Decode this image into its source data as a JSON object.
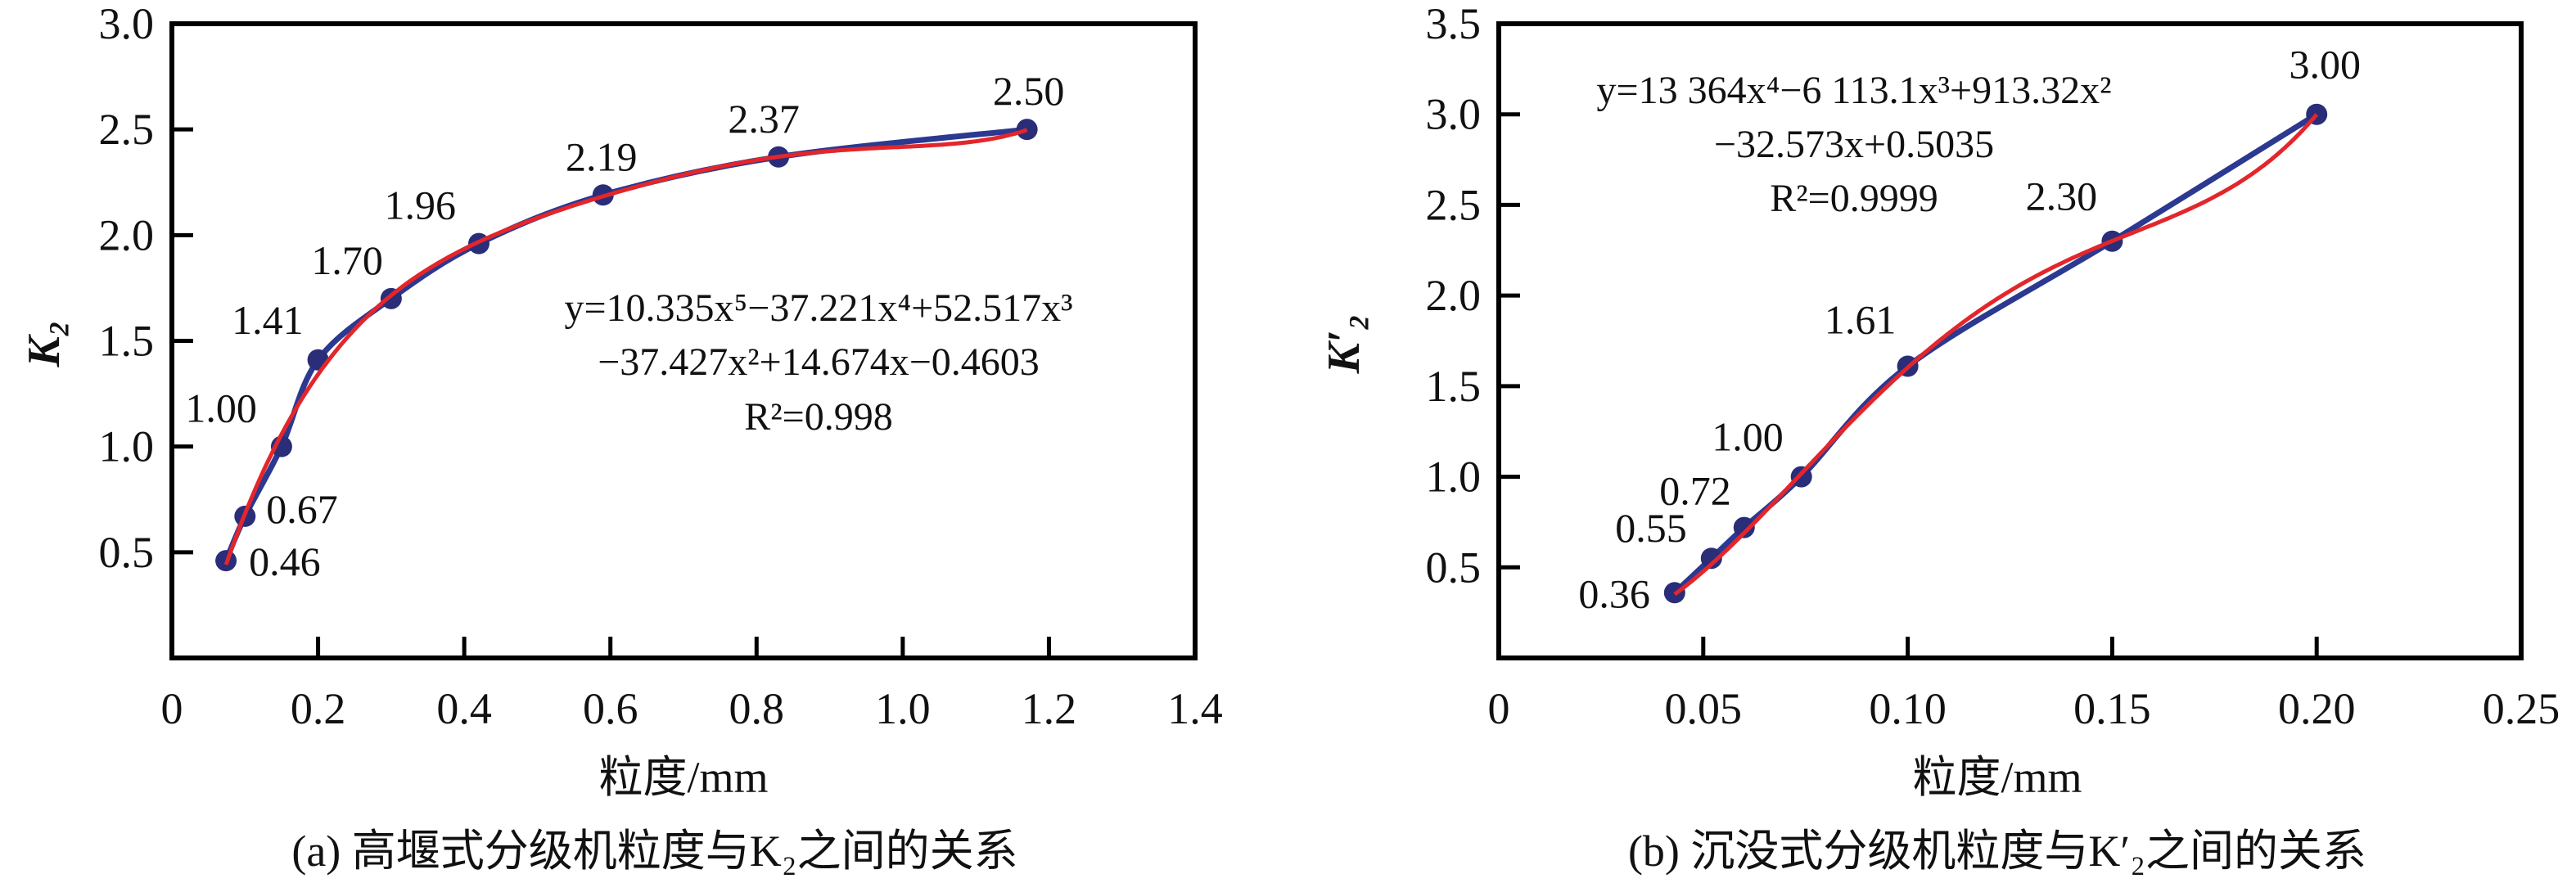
{
  "chart_data": [
    {
      "type": "line",
      "id": "a",
      "caption": "(a) 高堰式分级机粒度与K₂之间的关系",
      "xlabel": "粒度/mm",
      "ylabel": "K₂",
      "xlim": [
        0,
        1.4
      ],
      "ylim": [
        0,
        3.0
      ],
      "xticks": [
        "0",
        "0.2",
        "0.4",
        "0.6",
        "0.8",
        "1.0",
        "1.2",
        "1.4"
      ],
      "yticks": [
        "0.5",
        "1.0",
        "1.5",
        "2.0",
        "2.5",
        "3.0"
      ],
      "grid": false,
      "x": [
        0.074,
        0.1,
        0.15,
        0.2,
        0.3,
        0.42,
        0.59,
        0.83,
        1.17
      ],
      "y": [
        0.46,
        0.67,
        1.0,
        1.41,
        1.7,
        1.96,
        2.19,
        2.37,
        2.5
      ],
      "data_labels": [
        "0.46",
        "0.67",
        "1.00",
        "1.41",
        "1.70",
        "1.96",
        "2.19",
        "2.37",
        "2.50"
      ],
      "fit": {
        "coefficients_high_to_low": [
          10.335,
          -37.221,
          52.517,
          -37.427,
          14.674,
          -0.4603
        ],
        "equation_lines": [
          "y=10.335x⁵−37.221x⁴+52.517x³",
          "−37.427x²+14.674x−0.4603",
          "R²=0.998"
        ]
      },
      "colors": {
        "data": "#2b3990",
        "fit": "#e3262b",
        "marker": "#2a2d78"
      }
    },
    {
      "type": "line",
      "id": "b",
      "caption": "(b) 沉没式分级机粒度与K′₂之间的关系",
      "xlabel": "粒度/mm",
      "ylabel": "K′₂",
      "xlim": [
        0,
        0.25
      ],
      "ylim": [
        0,
        3.5
      ],
      "xticks": [
        "0",
        "0.05",
        "0.10",
        "0.15",
        "0.20",
        "0.25"
      ],
      "yticks": [
        "0.5",
        "1.0",
        "1.5",
        "2.0",
        "2.5",
        "3.0",
        "3.5"
      ],
      "grid": false,
      "x": [
        0.043,
        0.052,
        0.06,
        0.074,
        0.1,
        0.15,
        0.2
      ],
      "y": [
        0.36,
        0.55,
        0.72,
        1.0,
        1.61,
        2.3,
        3.0
      ],
      "data_labels": [
        "0.36",
        "0.55",
        "0.72",
        "1.00",
        "1.61",
        "2.30",
        "3.00"
      ],
      "fit": {
        "coefficients_high_to_low": [
          13364,
          -6113.1,
          913.32,
          -32.573,
          0.5035
        ],
        "equation_lines": [
          "y=13 364x⁴−6 113.1x³+913.32x²",
          "−32.573x+0.5035",
          "R²=0.9999"
        ]
      },
      "colors": {
        "data": "#2b3990",
        "fit": "#e3262b",
        "marker": "#2a2d78"
      }
    }
  ]
}
